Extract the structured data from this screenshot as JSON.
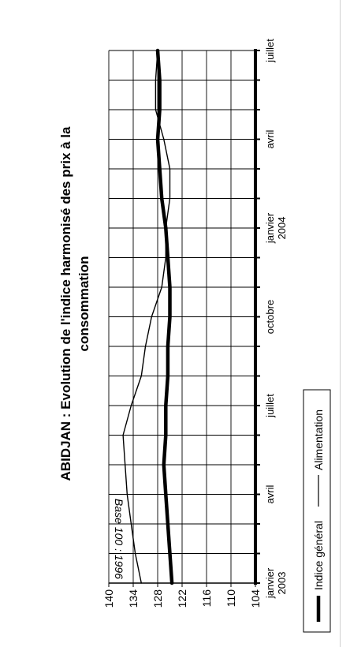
{
  "chart_data": {
    "type": "line",
    "title_line1": "ABIDJAN : Evolution de l'indice harmonisé des prix à la",
    "title_line2": "consommation",
    "ylabel": "Base 100 : 1996",
    "xlabel": "",
    "ylim": [
      104,
      140
    ],
    "y_ticks": [
      104,
      110,
      116,
      122,
      128,
      134,
      140
    ],
    "x_count": 19,
    "x_tick_labels": [
      {
        "index": 0,
        "lines": [
          "janvier",
          "2003"
        ]
      },
      {
        "index": 3,
        "lines": [
          "avril"
        ]
      },
      {
        "index": 6,
        "lines": [
          "juillet"
        ]
      },
      {
        "index": 9,
        "lines": [
          "octobre"
        ]
      },
      {
        "index": 12,
        "lines": [
          "janvier",
          "2004"
        ]
      },
      {
        "index": 15,
        "lines": [
          "avril"
        ]
      },
      {
        "index": 18,
        "lines": [
          "juillet"
        ]
      }
    ],
    "grid": true,
    "legend_position": "bottom",
    "series": [
      {
        "name": "Indice général",
        "color": "#000000",
        "style": "thick",
        "values": [
          124.5,
          125.0,
          125.5,
          126.0,
          126.5,
          126.0,
          126.0,
          125.5,
          125.5,
          125.0,
          125.0,
          125.5,
          126.0,
          127.0,
          127.5,
          128.0,
          127.5,
          127.5,
          128.0
        ]
      },
      {
        "name": "Alimentation",
        "color": "#000000",
        "style": "thin",
        "values": [
          132.0,
          133.5,
          134.5,
          135.5,
          136.0,
          136.5,
          134.5,
          132.0,
          131.0,
          129.5,
          127.0,
          126.0,
          126.0,
          125.0,
          125.0,
          126.5,
          128.5,
          128.5,
          128.0
        ]
      }
    ]
  }
}
